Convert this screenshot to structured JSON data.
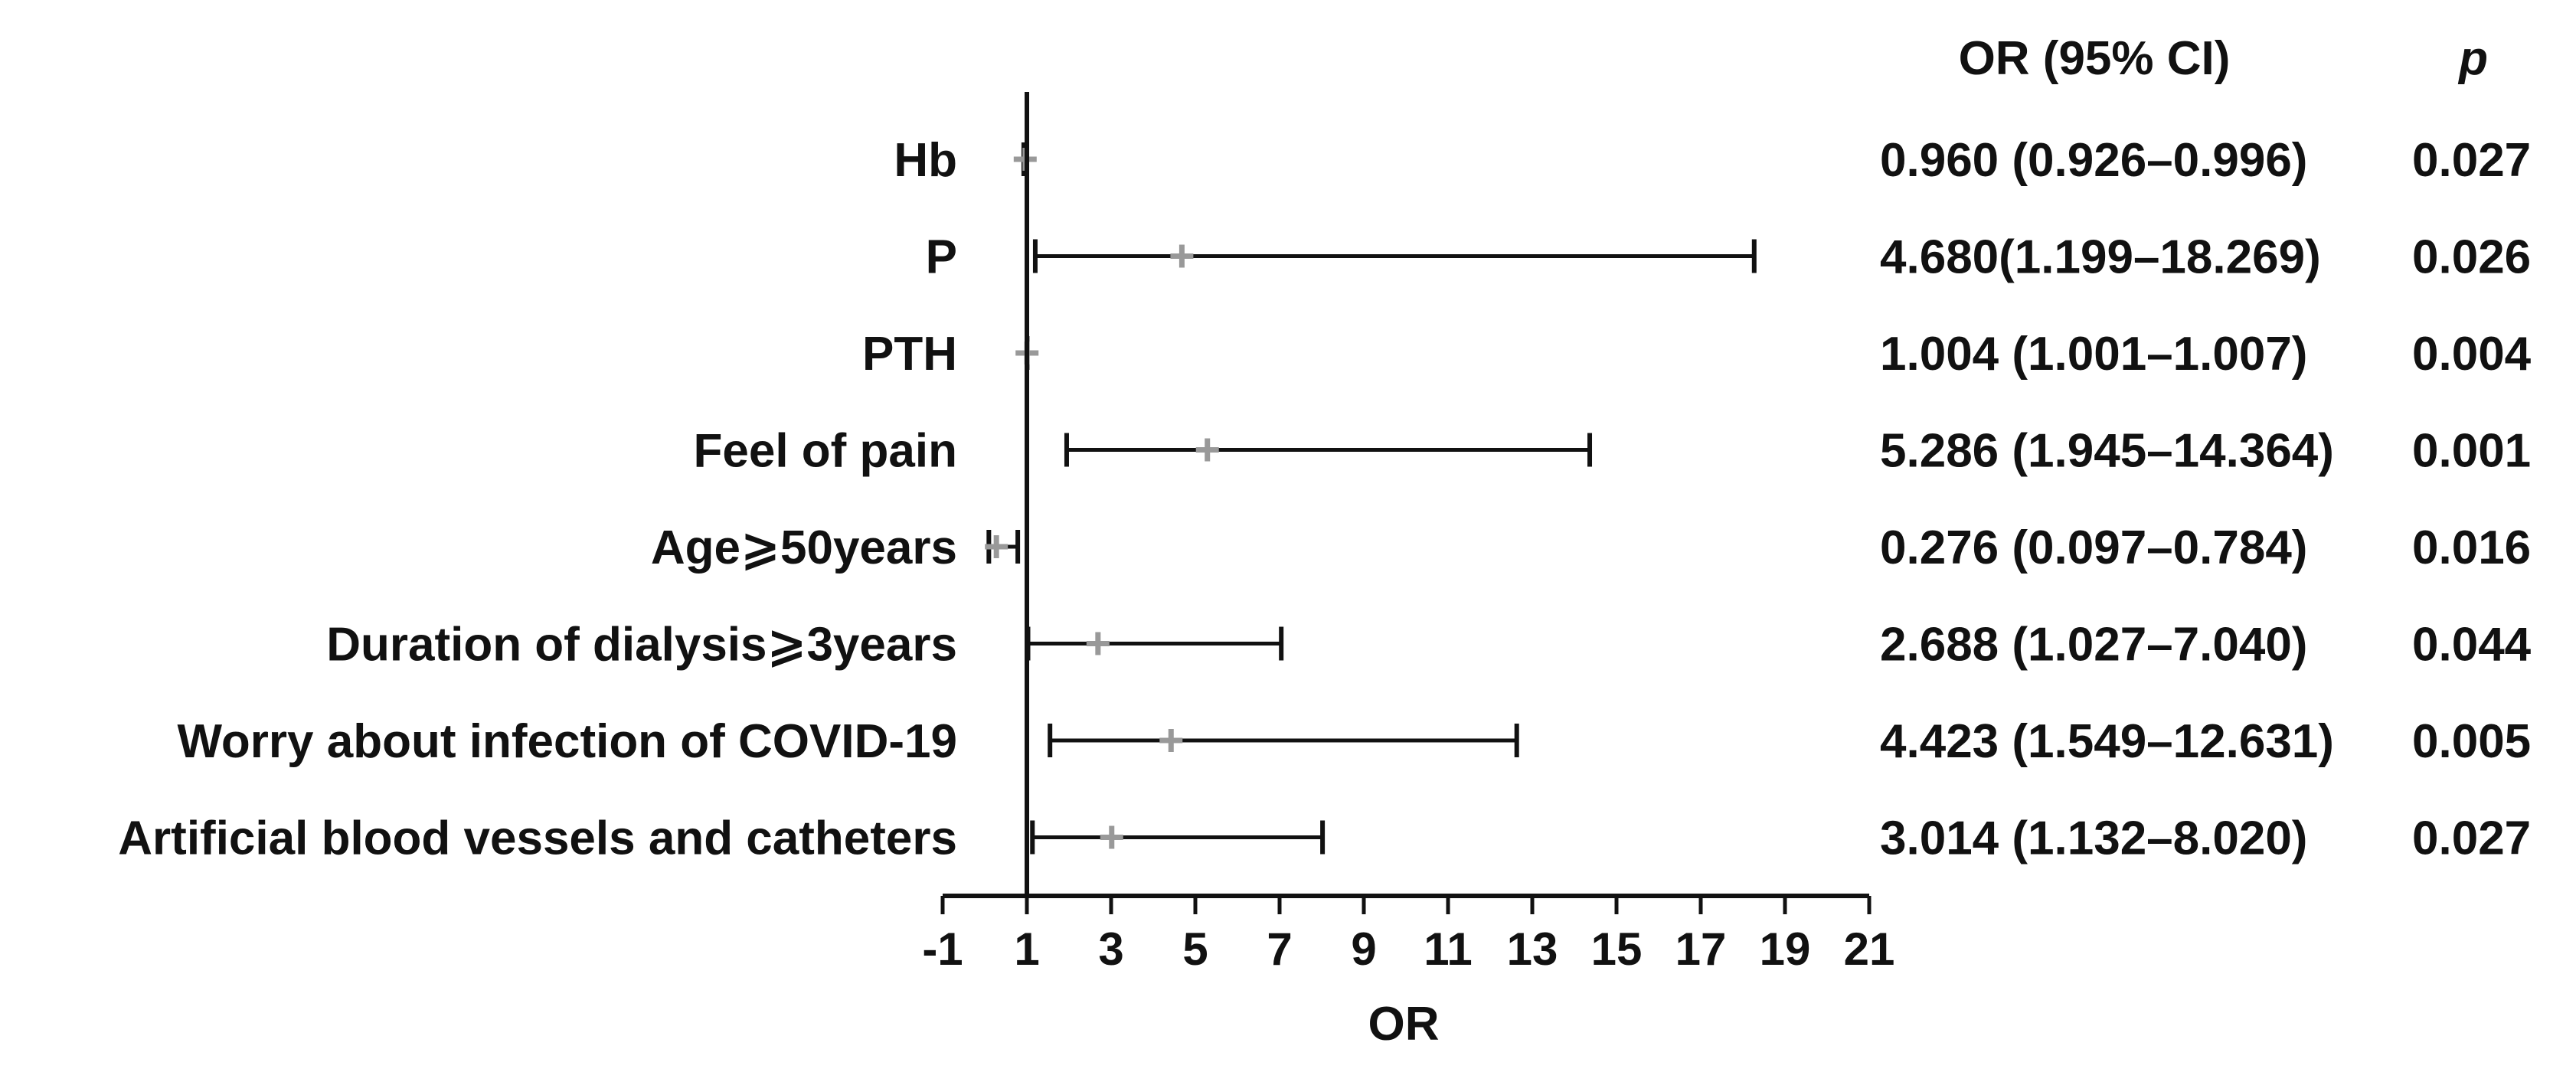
{
  "chart_data": {
    "type": "forest",
    "xlabel": "OR",
    "xlim": [
      -1,
      21
    ],
    "xticks": [
      -1,
      1,
      3,
      5,
      7,
      9,
      11,
      13,
      15,
      17,
      19,
      21
    ],
    "reference_line": 1,
    "columns": {
      "or_header": "OR (95% CI)",
      "p_header": "p"
    },
    "rows": [
      {
        "label": "Hb",
        "or": 0.96,
        "lower": 0.926,
        "upper": 0.996,
        "or_text": "0.960 (0.926–0.996)",
        "p": "0.027"
      },
      {
        "label": "P",
        "or": 4.68,
        "lower": 1.199,
        "upper": 18.269,
        "or_text": "4.680(1.199–18.269)",
        "p": "0.026"
      },
      {
        "label": "PTH",
        "or": 1.004,
        "lower": 1.001,
        "upper": 1.007,
        "or_text": "1.004 (1.001–1.007)",
        "p": "0.004"
      },
      {
        "label": "Feel of pain",
        "or": 5.286,
        "lower": 1.945,
        "upper": 14.364,
        "or_text": "5.286 (1.945–14.364)",
        "p": "0.001"
      },
      {
        "label": "Age⩾50years",
        "or": 0.276,
        "lower": 0.097,
        "upper": 0.784,
        "or_text": "0.276 (0.097–0.784)",
        "p": "0.016"
      },
      {
        "label": "Duration of dialysis⩾3years",
        "or": 2.688,
        "lower": 1.027,
        "upper": 7.04,
        "or_text": "2.688 (1.027–7.040)",
        "p": "0.044"
      },
      {
        "label": "Worry about infection of COVID-19",
        "or": 4.423,
        "lower": 1.549,
        "upper": 12.631,
        "or_text": "4.423 (1.549–12.631)",
        "p": "0.005"
      },
      {
        "label": "Artificial blood vessels and catheters",
        "or": 3.014,
        "lower": 1.132,
        "upper": 8.02,
        "or_text": "3.014 (1.132–8.020)",
        "p": "0.027"
      }
    ]
  }
}
